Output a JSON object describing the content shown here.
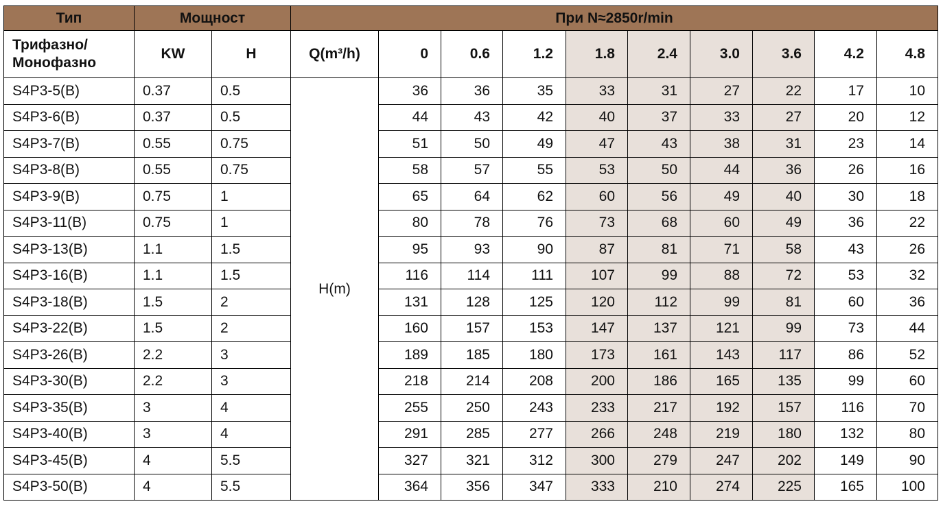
{
  "header": {
    "type": "Тип",
    "power": "Мощност",
    "speed": "При N≈2850r/min",
    "phase": "Трифазно/",
    "phase2": "Монофазно",
    "kw": "KW",
    "hp": "H",
    "q": "Q(m³/h)",
    "flows": [
      "0",
      "0.6",
      "1.2",
      "1.8",
      "2.4",
      "3.0",
      "3.6",
      "4.2",
      "4.8"
    ]
  },
  "head_label": "H(m)",
  "highlight_color": "#e8e0da",
  "header_color": "#9e7556",
  "rows": [
    {
      "model": "S4P3-5(B)",
      "kw": "0.37",
      "hp": "0.5",
      "h": [
        "36",
        "36",
        "35",
        "33",
        "31",
        "27",
        "22",
        "17",
        "10"
      ]
    },
    {
      "model": "S4P3-6(B)",
      "kw": "0.37",
      "hp": "0.5",
      "h": [
        "44",
        "43",
        "42",
        "40",
        "37",
        "33",
        "27",
        "20",
        "12"
      ]
    },
    {
      "model": "S4P3-7(B)",
      "kw": "0.55",
      "hp": "0.75",
      "h": [
        "51",
        "50",
        "49",
        "47",
        "43",
        "38",
        "31",
        "23",
        "14"
      ]
    },
    {
      "model": "S4P3-8(B)",
      "kw": "0.55",
      "hp": "0.75",
      "h": [
        "58",
        "57",
        "55",
        "53",
        "50",
        "44",
        "36",
        "26",
        "16"
      ]
    },
    {
      "model": "S4P3-9(B)",
      "kw": "0.75",
      "hp": "1",
      "h": [
        "65",
        "64",
        "62",
        "60",
        "56",
        "49",
        "40",
        "30",
        "18"
      ]
    },
    {
      "model": "S4P3-11(B)",
      "kw": "0.75",
      "hp": "1",
      "h": [
        "80",
        "78",
        "76",
        "73",
        "68",
        "60",
        "49",
        "36",
        "22"
      ]
    },
    {
      "model": "S4P3-13(B)",
      "kw": "1.1",
      "hp": "1.5",
      "h": [
        "95",
        "93",
        "90",
        "87",
        "81",
        "71",
        "58",
        "43",
        "26"
      ]
    },
    {
      "model": "S4P3-16(B)",
      "kw": "1.1",
      "hp": "1.5",
      "h": [
        "116",
        "114",
        "111",
        "107",
        "99",
        "88",
        "72",
        "53",
        "32"
      ]
    },
    {
      "model": "S4P3-18(B)",
      "kw": "1.5",
      "hp": "2",
      "h": [
        "131",
        "128",
        "125",
        "120",
        "112",
        "99",
        "81",
        "60",
        "36"
      ]
    },
    {
      "model": "S4P3-22(B)",
      "kw": "1.5",
      "hp": "2",
      "h": [
        "160",
        "157",
        "153",
        "147",
        "137",
        "121",
        "99",
        "73",
        "44"
      ]
    },
    {
      "model": "S4P3-26(B)",
      "kw": "2.2",
      "hp": "3",
      "h": [
        "189",
        "185",
        "180",
        "173",
        "161",
        "143",
        "117",
        "86",
        "52"
      ]
    },
    {
      "model": "S4P3-30(B)",
      "kw": "2.2",
      "hp": "3",
      "h": [
        "218",
        "214",
        "208",
        "200",
        "186",
        "165",
        "135",
        "99",
        "60"
      ]
    },
    {
      "model": "S4P3-35(B)",
      "kw": "3",
      "hp": "4",
      "h": [
        "255",
        "250",
        "243",
        "233",
        "217",
        "192",
        "157",
        "116",
        "70"
      ]
    },
    {
      "model": "S4P3-40(B)",
      "kw": "3",
      "hp": "4",
      "h": [
        "291",
        "285",
        "277",
        "266",
        "248",
        "219",
        "180",
        "132",
        "80"
      ]
    },
    {
      "model": "S4P3-45(B)",
      "kw": "4",
      "hp": "5.5",
      "h": [
        "327",
        "321",
        "312",
        "300",
        "279",
        "247",
        "202",
        "149",
        "90"
      ]
    },
    {
      "model": "S4P3-50(B)",
      "kw": "4",
      "hp": "5.5",
      "h": [
        "364",
        "356",
        "347",
        "333",
        "210",
        "274",
        "225",
        "165",
        "100"
      ]
    }
  ]
}
